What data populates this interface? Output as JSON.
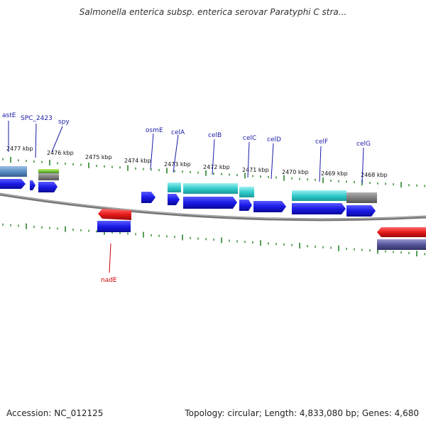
{
  "title": "Salmonella enterica subsp. enterica serovar Paratyphi C stra...",
  "footer": {
    "accession": "Accession: NC_012125",
    "summary": "Topology: circular; Length: 4,833,080 bp; Genes: 4,680"
  },
  "colors": {
    "gene": "#1a1ae6",
    "gene_reverse": "#e61a1a",
    "cds_teal": "#33cccc",
    "cds_steel": "#5b8ec4",
    "cds_gray": "#808080",
    "cds_lavender": "#55559a",
    "cds_green": "#7ac943",
    "backbone": "#777777",
    "tick": "#1a7a1a",
    "label_forward": "#1a1aaa",
    "label_reverse": "#cc0000"
  },
  "scale_labels": [
    "2477 kbp",
    "2476 kbp",
    "2475 kbp",
    "2474 kbp",
    "2473 kbp",
    "2472 kbp",
    "2471 kbp",
    "2470 kbp",
    "2469 kbp",
    "2468 kbp"
  ],
  "gene_labels": [
    {
      "text": "astE",
      "strand": "forward"
    },
    {
      "text": "SPC_2423",
      "strand": "forward"
    },
    {
      "text": "spy",
      "strand": "forward"
    },
    {
      "text": "osmE",
      "strand": "forward"
    },
    {
      "text": "celA",
      "strand": "forward"
    },
    {
      "text": "celB",
      "strand": "forward"
    },
    {
      "text": "celC",
      "strand": "forward"
    },
    {
      "text": "celD",
      "strand": "forward"
    },
    {
      "text": "celF",
      "strand": "forward"
    },
    {
      "text": "celG",
      "strand": "forward"
    },
    {
      "text": "nadE",
      "strand": "reverse"
    }
  ]
}
